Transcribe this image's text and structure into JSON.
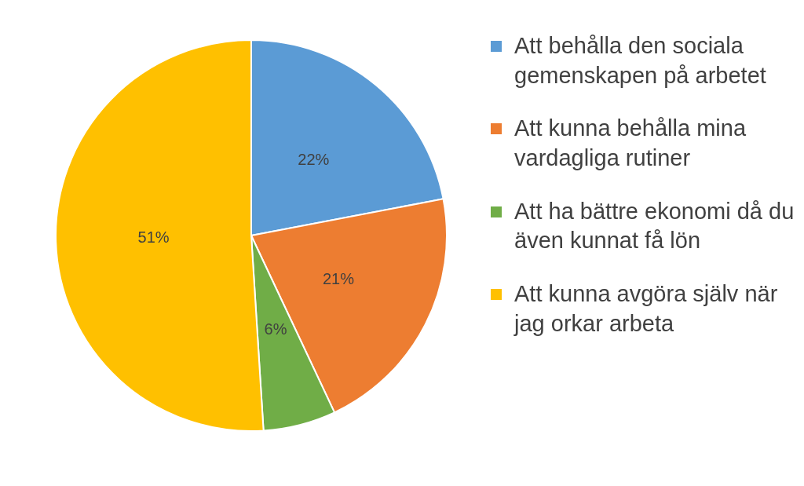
{
  "chart_data": {
    "type": "pie",
    "categories": [
      "Att behålla den sociala gemenskapen på arbetet",
      "Att kunna behålla mina vardagliga rutiner",
      "Att ha bättre ekonomi då du även kunnat få lön",
      "Att kunna avgöra själv när jag orkar arbeta"
    ],
    "values": [
      22,
      21,
      6,
      51
    ],
    "colors": [
      "#5b9bd5",
      "#ed7d31",
      "#70ad47",
      "#ffc000"
    ],
    "value_labels": [
      "22%",
      "21%",
      "6%",
      "51%"
    ],
    "legend": "right"
  }
}
